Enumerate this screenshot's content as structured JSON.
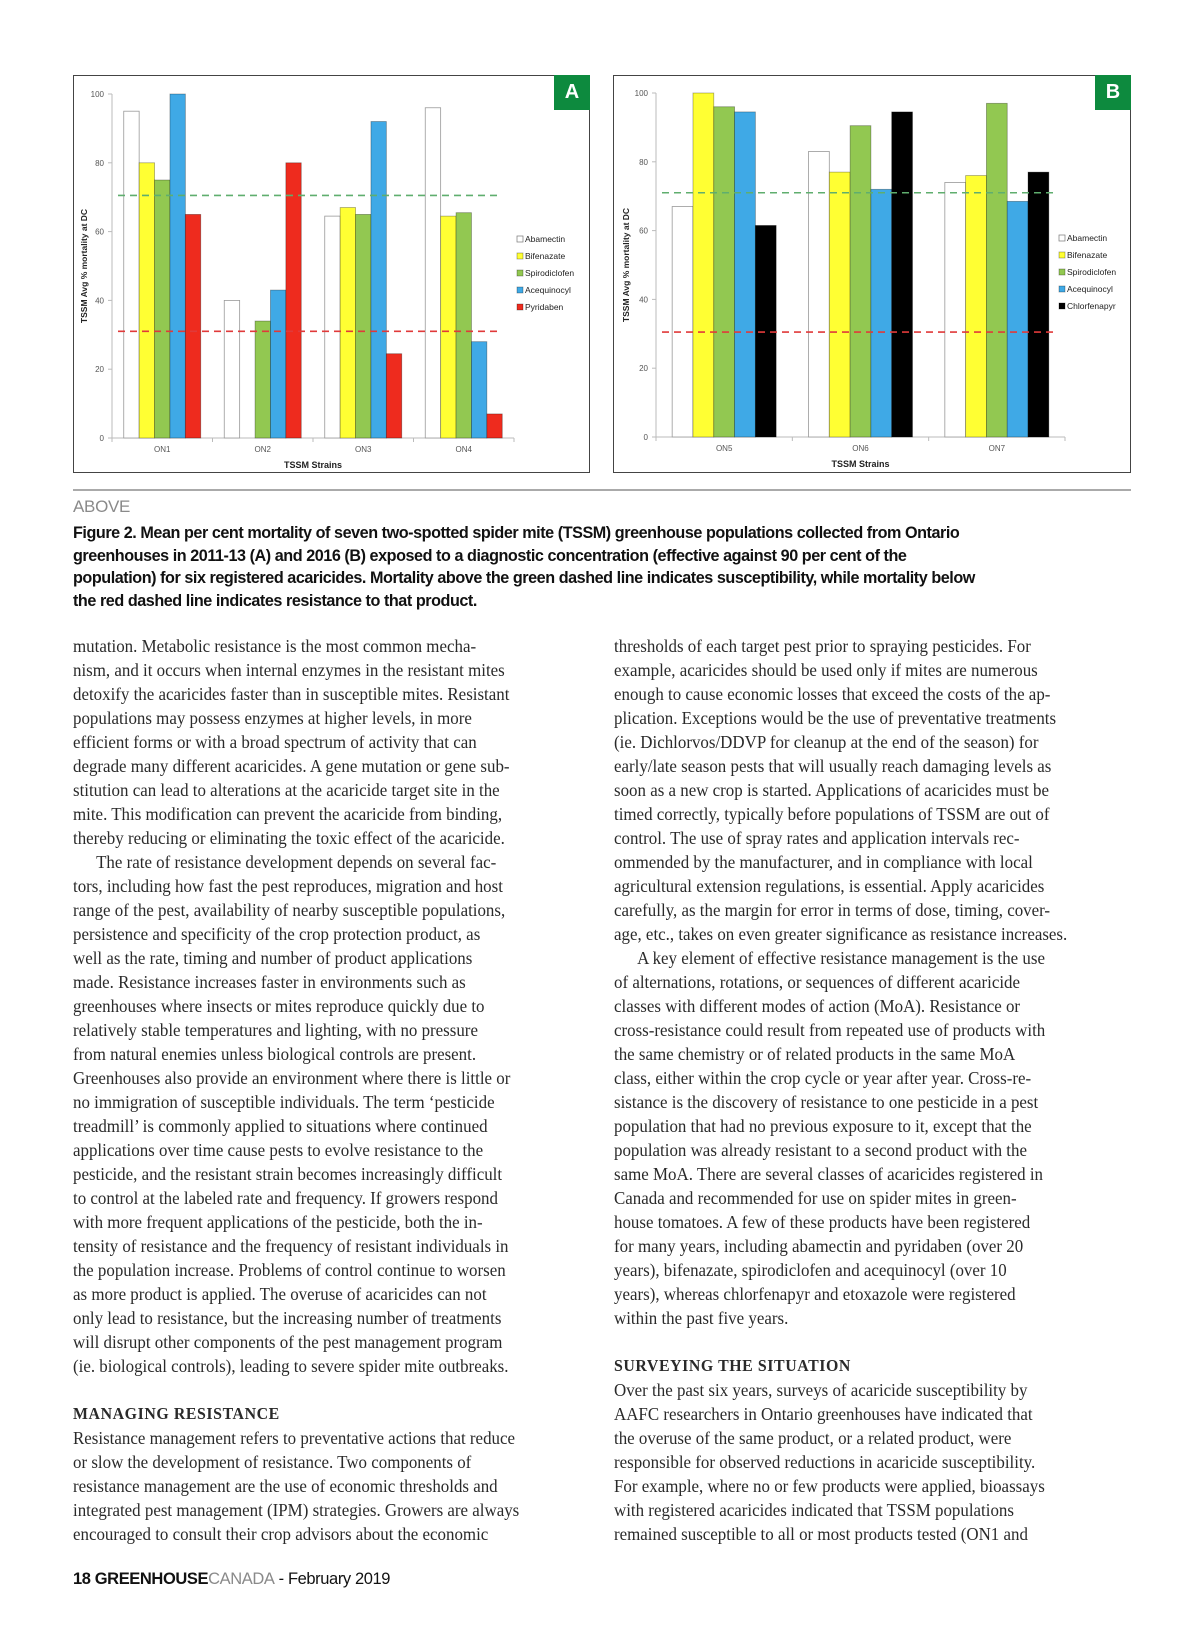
{
  "figure": {
    "label": "ABOVE",
    "caption_lines": [
      "Figure 2. Mean per cent mortality of seven two-spotted spider mite (TSSM) greenhouse populations collected from Ontario",
      "greenhouses in 2011-13 (A) and 2016 (B) exposed to a diagnostic concentration (effective against 90 per cent of the",
      "population) for six registered acaricides. Mortality above the green dashed line indicates susceptibility, while mortality below",
      "the red dashed line indicates resistance to that product."
    ]
  },
  "chart_data": [
    {
      "panel": "A",
      "type": "bar",
      "xlabel": "TSSM Strains",
      "ylabel": "TSSM Avg % mortality at DC",
      "ylim": [
        0,
        100
      ],
      "yticks": [
        "0",
        "20",
        "40",
        "60",
        "80",
        "100"
      ],
      "categories": [
        "ON1",
        "ON2",
        "ON3",
        "ON4"
      ],
      "legend": "right",
      "thresholds": {
        "susceptibility": 70.5,
        "susceptibility_color": "#5fae6e",
        "resistance": 31,
        "resistance_color": "#e03a3a"
      },
      "series": [
        {
          "name": "Abamectin",
          "color": "#ffffff",
          "values": [
            95,
            40,
            64.5,
            96
          ]
        },
        {
          "name": "Bifenazate",
          "color": "#ffff33",
          "values": [
            80,
            0,
            67,
            64.5
          ]
        },
        {
          "name": "Spirodiclofen",
          "color": "#92c851",
          "values": [
            75,
            34,
            65,
            65.5
          ]
        },
        {
          "name": "Acequinocyl",
          "color": "#3fa9e6",
          "values": [
            100,
            43,
            92,
            28
          ]
        },
        {
          "name": "Pyridaben",
          "color": "#ee2b1e",
          "values": [
            65,
            80,
            24.5,
            7
          ]
        }
      ]
    },
    {
      "panel": "B",
      "type": "bar",
      "xlabel": "TSSM Strains",
      "ylabel": "TSSM Avg % mortality at DC",
      "ylim": [
        0,
        100
      ],
      "yticks": [
        "0",
        "20",
        "40",
        "60",
        "80",
        "100"
      ],
      "categories": [
        "ON5",
        "ON6",
        "ON7"
      ],
      "legend": "right",
      "thresholds": {
        "susceptibility": 71,
        "susceptibility_color": "#5fae6e",
        "resistance": 30.5,
        "resistance_color": "#e03a3a"
      },
      "series": [
        {
          "name": "Abamectin",
          "color": "#ffffff",
          "values": [
            67,
            83,
            74
          ]
        },
        {
          "name": "Bifenazate",
          "color": "#ffff33",
          "values": [
            100,
            77,
            76
          ]
        },
        {
          "name": "Spirodiclofen",
          "color": "#92c851",
          "values": [
            96,
            90.5,
            97
          ]
        },
        {
          "name": "Acequinocyl",
          "color": "#3fa9e6",
          "values": [
            94.5,
            72,
            68.5
          ]
        },
        {
          "name": "Chlorfenapyr",
          "color": "#000000",
          "values": [
            61.5,
            94.5,
            77
          ]
        }
      ]
    }
  ],
  "columns": [
    {
      "lines": [
        {
          "t": "mutation. Metabolic resistance is the most common mecha-"
        },
        {
          "t": "nism, and it occurs when internal enzymes in the resistant mites"
        },
        {
          "t": "detoxify the acaricides faster than in susceptible mites. Resistant"
        },
        {
          "t": "populations may possess enzymes at higher levels, in more"
        },
        {
          "t": "efficient forms or with a broad spectrum of activity that can"
        },
        {
          "t": "degrade many different acaricides. A gene mutation or gene sub-"
        },
        {
          "t": "stitution can lead to alterations at the acaricide target site in the"
        },
        {
          "t": "mite. This modification can prevent the acaricide from binding,"
        },
        {
          "t": "thereby reducing or eliminating the toxic effect of the acaricide."
        },
        {
          "t": "The rate of resistance development depends on several fac-",
          "k": "ind"
        },
        {
          "t": "tors, including how fast the pest reproduces, migration and host"
        },
        {
          "t": "range of the pest, availability of nearby susceptible populations,"
        },
        {
          "t": "persistence and specificity of the crop protection product, as"
        },
        {
          "t": "well as the rate, timing and number of product applications"
        },
        {
          "t": "made. Resistance increases faster in environments such as"
        },
        {
          "t": "greenhouses where insects or mites reproduce quickly due to"
        },
        {
          "t": "relatively stable temperatures and lighting, with no pressure"
        },
        {
          "t": "from natural enemies unless biological controls are present."
        },
        {
          "t": "Greenhouses also provide an environment where there is little or"
        },
        {
          "t": "no immigration of susceptible individuals. The term ‘pesticide"
        },
        {
          "t": "treadmill’ is commonly applied to situations where continued"
        },
        {
          "t": "applications over time cause pests to evolve resistance to the"
        },
        {
          "t": "pesticide, and the resistant strain becomes increasingly difficult"
        },
        {
          "t": "to control at the labeled rate and frequency. If growers respond"
        },
        {
          "t": "with more frequent applications of the pesticide, both the in-"
        },
        {
          "t": "tensity of resistance and the frequency of resistant individuals in"
        },
        {
          "t": "the population increase. Problems of control continue to worsen"
        },
        {
          "t": "as more product is applied. The overuse of acaricides can not"
        },
        {
          "t": "only lead to resistance, but the increasing number of treatments"
        },
        {
          "t": "will disrupt other components of the pest management program"
        },
        {
          "t": "(ie. biological controls), leading to severe spider mite outbreaks."
        },
        {
          "t": ""
        },
        {
          "t": "MANAGING RESISTANCE",
          "k": "hd"
        },
        {
          "t": "Resistance management refers to preventative actions that reduce"
        },
        {
          "t": "or slow the development of resistance. Two components of"
        },
        {
          "t": "resistance management are the use of economic thresholds and"
        },
        {
          "t": "integrated pest management (IPM) strategies. Growers are always"
        },
        {
          "t": "encouraged to consult their crop advisors about the economic"
        }
      ]
    },
    {
      "lines": [
        {
          "t": "thresholds of each target pest prior to spraying pesticides. For"
        },
        {
          "t": "example, acaricides should be used only if mites are numerous"
        },
        {
          "t": "enough to cause economic losses that exceed the costs of the ap-"
        },
        {
          "t": "plication. Exceptions would be the use of preventative treatments"
        },
        {
          "t": "(ie. Dichlorvos/DDVP for cleanup at the end of the season) for"
        },
        {
          "t": "early/late season pests that will usually reach damaging levels as"
        },
        {
          "t": "soon as a new crop is started. Applications of acaricides must be"
        },
        {
          "t": "timed correctly, typically before populations of TSSM are out of"
        },
        {
          "t": "control. The use of spray rates and application intervals rec-"
        },
        {
          "t": "ommended by the manufacturer, and in compliance with local"
        },
        {
          "t": "agricultural extension regulations, is essential. Apply acaricides"
        },
        {
          "t": "carefully, as the margin for error in terms of dose, timing, cover-"
        },
        {
          "t": "age, etc., takes on even greater significance as resistance increases."
        },
        {
          "t": "A key element of effective resistance management is the use",
          "k": "ind"
        },
        {
          "t": "of alternations, rotations, or sequences of different acaricide"
        },
        {
          "t": "classes with different modes of action (MoA). Resistance or"
        },
        {
          "t": "cross-resistance could result from repeated use of products with"
        },
        {
          "t": "the same chemistry or of related products in the same MoA"
        },
        {
          "t": "class, either within the crop cycle or year after year. Cross-re-"
        },
        {
          "t": "sistance is the discovery of resistance to one pesticide in a pest"
        },
        {
          "t": "population that had no previous exposure to it, except that the"
        },
        {
          "t": "population was already resistant to a second product with the"
        },
        {
          "t": "same MoA. There are several classes of acaricides registered in"
        },
        {
          "t": "Canada and recommended for use on spider mites in green-"
        },
        {
          "t": "house tomatoes. A few of these products have been registered"
        },
        {
          "t": "for many years, including abamectin and pyridaben (over 20"
        },
        {
          "t": "years), bifenazate, spirodiclofen and acequinocyl (over 10"
        },
        {
          "t": "years), whereas chlorfenapyr and etoxazole were registered"
        },
        {
          "t": "within the past five years."
        },
        {
          "t": ""
        },
        {
          "t": "SURVEYING THE SITUATION",
          "k": "hd"
        },
        {
          "t": "Over the past six years, surveys of acaricide susceptibility by"
        },
        {
          "t": "AAFC researchers in Ontario greenhouses have indicated that"
        },
        {
          "t": "the overuse of the same product, or a related product, were"
        },
        {
          "t": "responsible for observed reductions in acaricide susceptibility."
        },
        {
          "t": "For example, where no or few products were applied, bioassays"
        },
        {
          "t": "with registered acaricides indicated that TSSM populations"
        },
        {
          "t": "remained susceptible to all or most products tested (ON1 and"
        }
      ]
    }
  ],
  "footer": {
    "page": "18",
    "brand1": "GREENHOUSE",
    "brand2": "CANADA",
    "issue": "- February 2019"
  }
}
